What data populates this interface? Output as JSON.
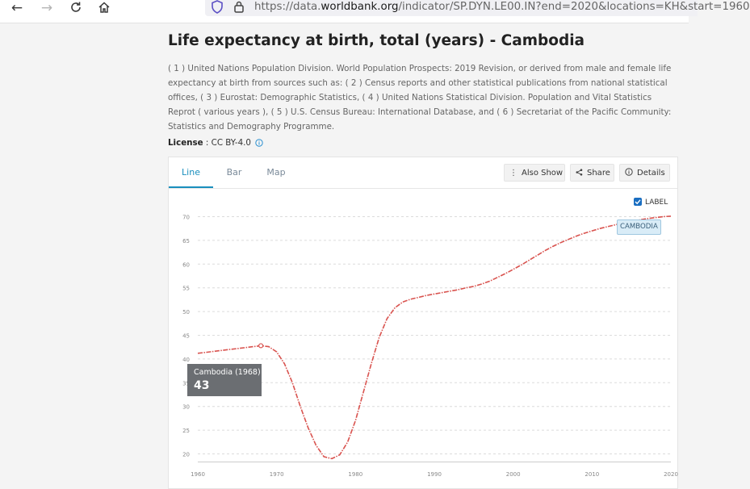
{
  "browser": {
    "url_prefix": "https://data.",
    "url_domain": "worldbank.org",
    "url_rest": "/indicator/SP.DYN.LE00.IN?end=2020&locations=KH&start=1960"
  },
  "page": {
    "title": "Life expectancy at birth, total (years) - Cambodia",
    "source_note": "( 1 ) United Nations Population Division. World Population Prospects: 2019 Revision, or derived from male and female life expectancy at birth from sources such as: ( 2 ) Census reports and other statistical publications from national statistical offices, ( 3 ) Eurostat: Demographic Statistics, ( 4 ) United Nations Statistical Division. Population and Vital Statistics Reprot ( various years ), ( 5 ) U.S. Census Bureau: International Database, and ( 6 ) Secretariat of the Pacific Community: Statistics and Demography Programme.",
    "license_label": "License",
    "license_sep": " : ",
    "license_value": "CC BY-4.0"
  },
  "card": {
    "tabs": [
      "Line",
      "Bar",
      "Map"
    ],
    "active_tab": "Line",
    "buttons": {
      "also_show": "Also Show",
      "share": "Share",
      "details": "Details"
    },
    "label_toggle": "LABEL",
    "label_checked": true
  },
  "tooltip": {
    "label": "Cambodia (1968)",
    "value": "43"
  },
  "series_label": "CAMBODIA",
  "colors": {
    "line": "#d9534f",
    "accent": "#1a8fbd",
    "tooltip_bg": "#6b6e72"
  },
  "chart_data": {
    "type": "line",
    "x_ticks": [
      1960,
      1970,
      1980,
      1990,
      2000,
      2010,
      2020
    ],
    "y_ticks": [
      20,
      25,
      30,
      35,
      40,
      45,
      50,
      55,
      60,
      65,
      70
    ],
    "xlim": [
      1960,
      2020
    ],
    "ylim": [
      20,
      70
    ],
    "grid": true,
    "series": [
      {
        "name": "CAMBODIA",
        "x": [
          1960,
          1961,
          1962,
          1963,
          1964,
          1965,
          1966,
          1967,
          1968,
          1969,
          1970,
          1971,
          1972,
          1973,
          1974,
          1975,
          1976,
          1977,
          1978,
          1979,
          1980,
          1981,
          1982,
          1983,
          1984,
          1985,
          1986,
          1987,
          1988,
          1989,
          1990,
          1991,
          1992,
          1993,
          1994,
          1995,
          1996,
          1997,
          1998,
          1999,
          2000,
          2001,
          2002,
          2003,
          2004,
          2005,
          2006,
          2007,
          2008,
          2009,
          2010,
          2011,
          2012,
          2013,
          2014,
          2015,
          2016,
          2017,
          2018,
          2019,
          2020
        ],
        "y": [
          41.2,
          41.4,
          41.6,
          41.8,
          42.0,
          42.2,
          42.4,
          42.6,
          42.8,
          42.6,
          41.5,
          39.0,
          35.0,
          30.0,
          25.5,
          21.8,
          19.4,
          19.0,
          19.8,
          22.5,
          27.0,
          33.0,
          39.0,
          44.5,
          48.5,
          50.8,
          52.0,
          52.6,
          53.0,
          53.4,
          53.7,
          54.0,
          54.3,
          54.6,
          55.0,
          55.3,
          55.8,
          56.4,
          57.2,
          58.0,
          58.9,
          59.8,
          60.8,
          61.8,
          62.8,
          63.7,
          64.5,
          65.2,
          65.9,
          66.5,
          67.0,
          67.5,
          67.9,
          68.3,
          68.7,
          69.0,
          69.3,
          69.6,
          69.8,
          70.0,
          70.1
        ]
      }
    ],
    "highlight": {
      "x": 1968,
      "label": "Cambodia (1968)",
      "value": "43"
    }
  }
}
